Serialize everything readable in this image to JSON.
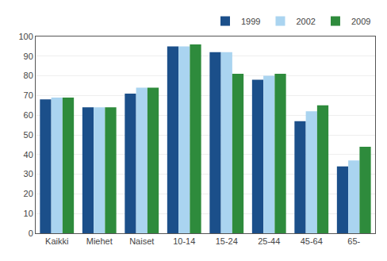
{
  "chart_data": {
    "type": "bar",
    "categories": [
      "Kaikki",
      "Miehet",
      "Naiset",
      "10-14",
      "15-24",
      "25-44",
      "45-64",
      "65-"
    ],
    "series": [
      {
        "name": "1999",
        "color": "#1b4f8a",
        "values": [
          68,
          64,
          71,
          95,
          92,
          78,
          57,
          34
        ]
      },
      {
        "name": "2002",
        "color": "#aad4f0",
        "values": [
          69,
          64,
          74,
          95,
          92,
          80,
          62,
          37
        ]
      },
      {
        "name": "2009",
        "color": "#2e8b3c",
        "values": [
          69,
          64,
          74,
          96,
          81,
          81,
          65,
          44
        ]
      }
    ],
    "ylim": [
      0,
      100
    ],
    "yticks": [
      0,
      10,
      20,
      30,
      40,
      50,
      60,
      70,
      80,
      90,
      100
    ],
    "grid": true,
    "legend": "upper right"
  }
}
